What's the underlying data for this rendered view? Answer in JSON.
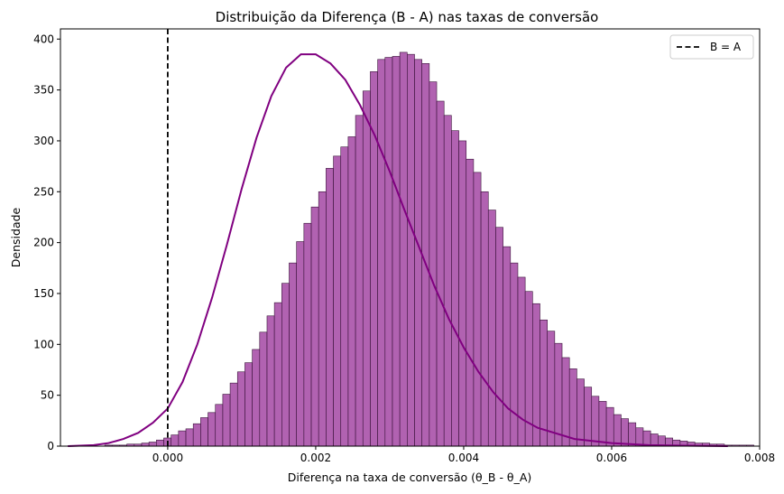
{
  "chart_data": {
    "type": "bar",
    "title": "Distribuição da Diferença (B - A) nas taxas de conversão",
    "xlabel": "Diferença na taxa de conversão (θ_B - θ_A)",
    "ylabel": "Densidade",
    "xlim": [
      -0.00145,
      0.008
    ],
    "ylim": [
      0,
      410
    ],
    "xticks": [
      0.0,
      0.002,
      0.004,
      0.006,
      0.008
    ],
    "xtick_labels": [
      "0.000",
      "0.002",
      "0.004",
      "0.006",
      "0.008"
    ],
    "yticks": [
      0,
      50,
      100,
      150,
      200,
      250,
      300,
      350,
      400
    ],
    "ytick_labels": [
      "0",
      "50",
      "100",
      "150",
      "200",
      "250",
      "300",
      "350",
      "400"
    ],
    "grid": false,
    "legend": {
      "position": "top-right",
      "entries": [
        {
          "label": "B = A",
          "style": "dashed",
          "color": "#000000"
        }
      ]
    },
    "histogram": {
      "color": "#A347A3",
      "edge_color": "#3a133a",
      "bin_start": -0.00135,
      "bin_width": 9.97e-05,
      "values": [
        0,
        0,
        0,
        0,
        0,
        1,
        1,
        1,
        2,
        2,
        3,
        4,
        6,
        8,
        11,
        15,
        17,
        22,
        28,
        33,
        41,
        51,
        62,
        73,
        82,
        95,
        112,
        128,
        141,
        160,
        180,
        201,
        219,
        235,
        250,
        273,
        285,
        294,
        304,
        325,
        349,
        368,
        380,
        382,
        383,
        387,
        385,
        380,
        376,
        358,
        339,
        325,
        310,
        300,
        282,
        269,
        250,
        232,
        215,
        196,
        180,
        166,
        152,
        140,
        124,
        113,
        101,
        87,
        76,
        66,
        58,
        49,
        44,
        38,
        31,
        27,
        23,
        18,
        15,
        12,
        10,
        8,
        6,
        5,
        4,
        3,
        3,
        2,
        2,
        1,
        1,
        1,
        1,
        0,
        0,
        0
      ]
    },
    "kde": {
      "color": "#800080",
      "x": [
        -0.00135,
        -0.001,
        -0.0008,
        -0.0006,
        -0.0004,
        -0.0002,
        0.0,
        0.0002,
        0.0004,
        0.0006,
        0.0008,
        0.001,
        0.0012,
        0.0014,
        0.0016,
        0.0018,
        0.002,
        0.0022,
        0.0024,
        0.0026,
        0.0028,
        0.003,
        0.0032,
        0.0034,
        0.0036,
        0.0038,
        0.004,
        0.0042,
        0.0044,
        0.0046,
        0.0048,
        0.005,
        0.0055,
        0.006,
        0.0065,
        0.007,
        0.00757
      ],
      "y": [
        0,
        1,
        3,
        7,
        13,
        23,
        37,
        63,
        100,
        146,
        198,
        253,
        303,
        344,
        372,
        385,
        385,
        376,
        360,
        335,
        305,
        270,
        232,
        195,
        158,
        125,
        97,
        73,
        53,
        37,
        26,
        18,
        7,
        3,
        1,
        0.5,
        0
      ]
    },
    "reference_line": {
      "x": 0.0,
      "label": "B = A"
    }
  }
}
